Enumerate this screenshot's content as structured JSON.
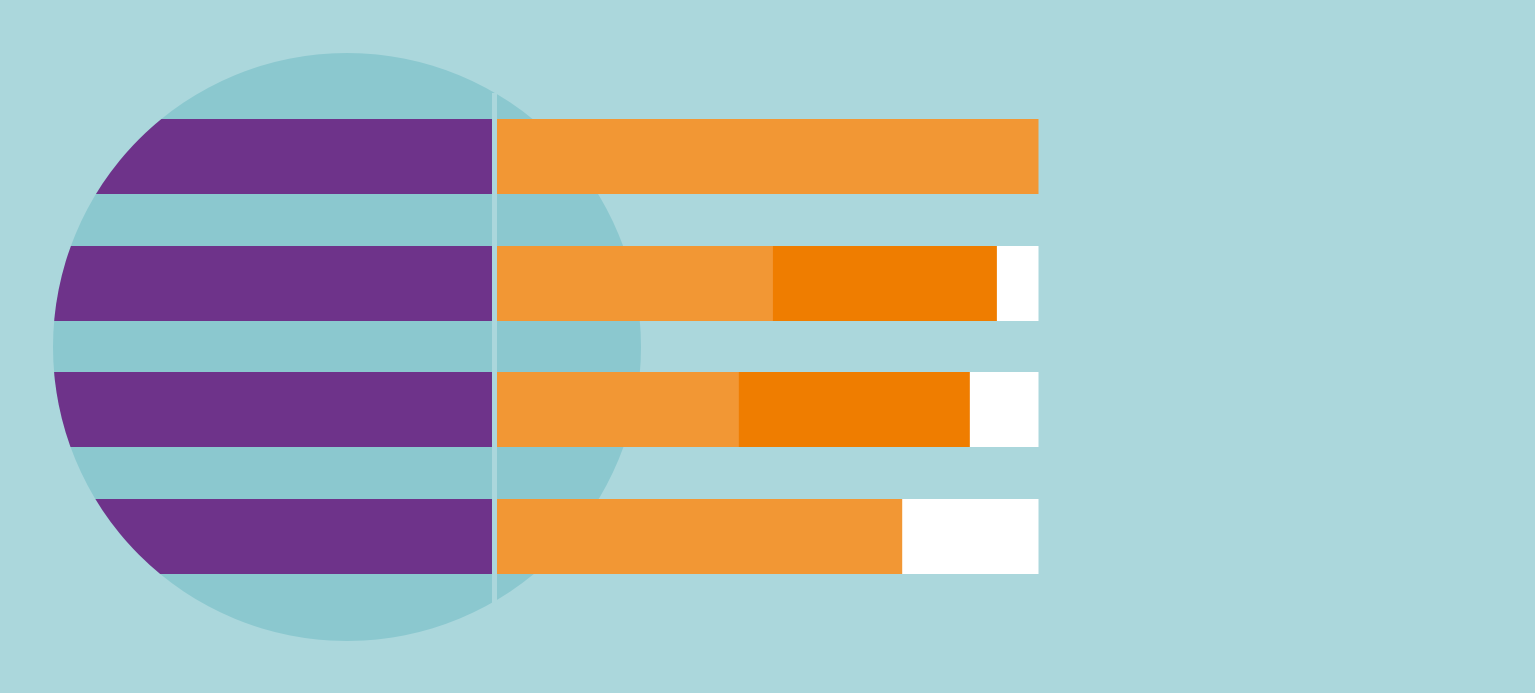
{
  "colors": {
    "background": "#ABD7DC",
    "circle": "#8BC8CF",
    "purple": "#6E338A",
    "light_orange": "#F29734",
    "dark_orange": "#EF7D00",
    "white": "#FFFFFF"
  },
  "rows": [
    {
      "segments": [
        {
          "color": "light_orange",
          "fraction": 1.0
        }
      ]
    },
    {
      "segments": [
        {
          "color": "light_orange",
          "fraction": 0.51
        },
        {
          "color": "dark_orange",
          "fraction": 0.414
        },
        {
          "color": "white",
          "fraction": 0.076
        }
      ]
    },
    {
      "segments": [
        {
          "color": "light_orange",
          "fraction": 0.447
        },
        {
          "color": "dark_orange",
          "fraction": 0.427
        },
        {
          "color": "white",
          "fraction": 0.126
        }
      ]
    },
    {
      "segments": [
        {
          "color": "light_orange",
          "fraction": 0.749
        },
        {
          "color": "white",
          "fraction": 0.251
        }
      ]
    }
  ]
}
